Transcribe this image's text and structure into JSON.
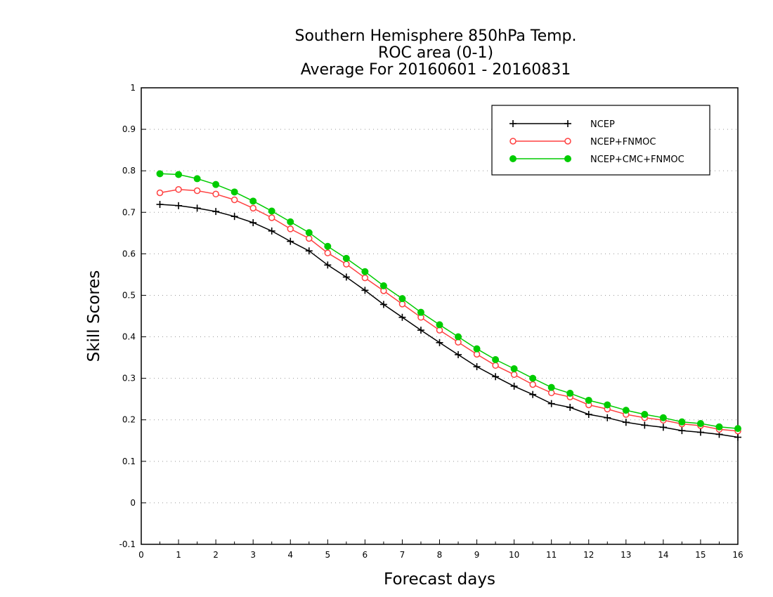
{
  "chart_data": {
    "type": "line",
    "title_lines": [
      "Southern Hemisphere 850hPa Temp.",
      "ROC area (0-1)",
      "Average For 20160601 - 20160831"
    ],
    "xlabel": "Forecast days",
    "ylabel": "Skill Scores",
    "xlim": [
      0,
      16
    ],
    "ylim": [
      -0.1,
      1
    ],
    "xticks": [
      "0",
      "1",
      "2",
      "3",
      "4",
      "5",
      "6",
      "7",
      "8",
      "9",
      "10",
      "11",
      "12",
      "13",
      "14",
      "15",
      "16"
    ],
    "yticks": [
      "-0.1",
      "0",
      "0.1",
      "0.2",
      "0.3",
      "0.4",
      "0.5",
      "0.6",
      "0.7",
      "0.8",
      "0.9",
      "1"
    ],
    "grid": "horizontal dotted",
    "legend_position": "top-right",
    "x": [
      0.5,
      1,
      1.5,
      2,
      2.5,
      3,
      3.5,
      4,
      4.5,
      5,
      5.5,
      6,
      6.5,
      7,
      7.5,
      8,
      8.5,
      9,
      9.5,
      10,
      10.5,
      11,
      11.5,
      12,
      12.5,
      13,
      13.5,
      14,
      14.5,
      15,
      15.5,
      16
    ],
    "series": [
      {
        "name": "NCEP",
        "color": "#000000",
        "marker": "plus",
        "values": [
          0.719,
          0.716,
          0.71,
          0.702,
          0.69,
          0.675,
          0.655,
          0.63,
          0.607,
          0.573,
          0.544,
          0.512,
          0.478,
          0.447,
          0.416,
          0.386,
          0.357,
          0.328,
          0.304,
          0.281,
          0.261,
          0.239,
          0.23,
          0.213,
          0.205,
          0.194,
          0.187,
          0.182,
          0.174,
          0.17,
          0.165,
          0.158
        ]
      },
      {
        "name": "NCEP+FNMOC",
        "color": "#ff4040",
        "marker": "open-circle",
        "values": [
          0.747,
          0.755,
          0.752,
          0.744,
          0.73,
          0.71,
          0.687,
          0.66,
          0.637,
          0.602,
          0.575,
          0.542,
          0.511,
          0.479,
          0.447,
          0.416,
          0.387,
          0.358,
          0.331,
          0.309,
          0.285,
          0.265,
          0.255,
          0.236,
          0.226,
          0.213,
          0.205,
          0.199,
          0.19,
          0.186,
          0.177,
          0.173
        ]
      },
      {
        "name": "NCEP+CMC+FNMOC",
        "color": "#00cc00",
        "marker": "filled-circle",
        "values": [
          0.793,
          0.791,
          0.781,
          0.767,
          0.749,
          0.727,
          0.703,
          0.677,
          0.651,
          0.618,
          0.589,
          0.557,
          0.523,
          0.492,
          0.459,
          0.429,
          0.4,
          0.371,
          0.345,
          0.323,
          0.3,
          0.278,
          0.264,
          0.247,
          0.236,
          0.223,
          0.213,
          0.205,
          0.195,
          0.191,
          0.183,
          0.179
        ]
      }
    ]
  }
}
